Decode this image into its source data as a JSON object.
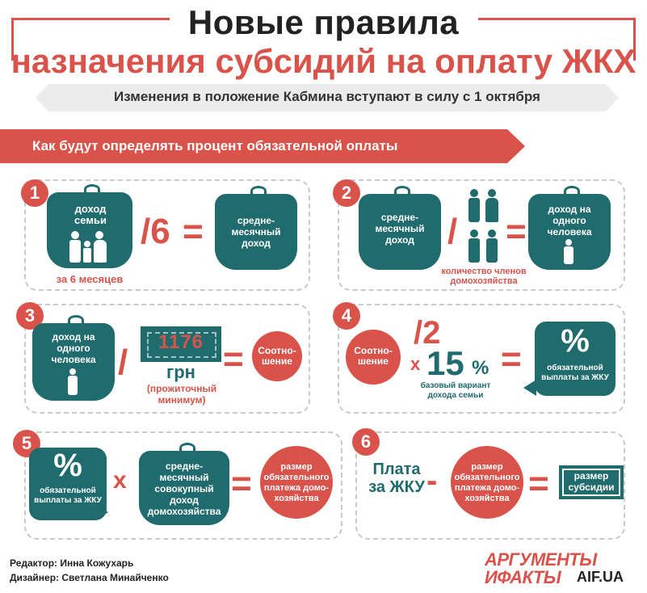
{
  "header": {
    "title_line1": "Новые правила",
    "title_line2": "назначения субсидий на оплату ЖКХ",
    "subtitle": "Изменения в положение Кабмина вступают в силу с 1 октября"
  },
  "section": {
    "ribbon": "Как будут определять процент обязательной оплаты"
  },
  "step1": {
    "number": "1",
    "purse_a": "доход семьи",
    "caption": "за 6 месяцев",
    "operator": "/6",
    "equals": "=",
    "purse_b": "средне-месячный доход"
  },
  "step2": {
    "number": "2",
    "purse_a": "средне-месячный доход",
    "slash": "/",
    "caption": "количество членов домохозяйства",
    "equals": "=",
    "purse_b": "доход на одного человека"
  },
  "step3": {
    "number": "3",
    "purse_a": "доход на одного человека",
    "slash": "/",
    "amount": "1176",
    "currency": "грн",
    "caption": "(прожиточный минимум)",
    "equals": "=",
    "circle": "Соотно-шение"
  },
  "step4": {
    "number": "4",
    "circle": "Соотно-шение",
    "div": "/2",
    "times": "х",
    "percent": "15",
    "percent_sign": "%",
    "caption": "базовый вариант дохода семьи",
    "equals": "=",
    "bubble_symbol": "%",
    "bubble_text": "обязательной выплаты за ЖКУ"
  },
  "step5": {
    "number": "5",
    "bubble_symbol": "%",
    "bubble_text": "обязательной выплаты за ЖКУ",
    "times": "х",
    "purse": "средне-месячный совокупный доход домохозяйства",
    "equals": "=",
    "circle": "размер обязательного платежа домо-хозяйства"
  },
  "step6": {
    "number": "6",
    "text": "Плата за ЖКУ",
    "minus": "-",
    "circle": "размер обязательного платежа домо-хозяйства",
    "equals": "=",
    "banknote": "размер субсидии"
  },
  "footer": {
    "editor": "Редактор: Инна Кожухарь",
    "designer": "Дизайнер: Светлана Минайченко",
    "logo_line1": "АРГУМЕНТЫ",
    "logo_line2": "ИФАКТЫ",
    "logo_site": "AIF.UA"
  },
  "colors": {
    "accent_red": "#d9534b",
    "teal": "#1f6b6e",
    "light_gray": "#ececec"
  }
}
